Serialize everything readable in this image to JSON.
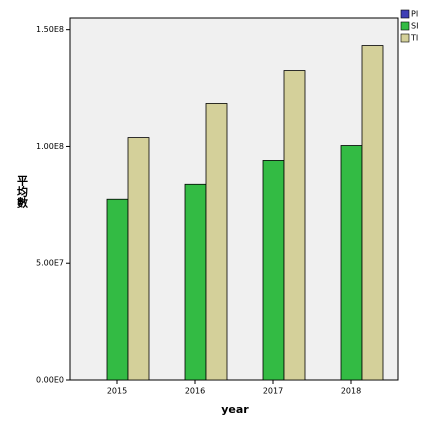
{
  "chart_data": {
    "type": "bar",
    "categories": [
      "2015",
      "2016",
      "2017",
      "2018"
    ],
    "x_label": "year",
    "y_label": "平均數",
    "series": [
      {
        "name": "PI",
        "color": "#3f3fb5",
        "values": [
          0,
          0,
          0,
          0
        ]
      },
      {
        "name": "SI",
        "color": "#33bb44",
        "values": [
          77400000,
          83800000,
          94000000,
          100400000
        ]
      },
      {
        "name": "TI",
        "color": "#d4d09a",
        "values": [
          103800000,
          118400000,
          132500000,
          143200000
        ]
      }
    ],
    "ylim": [
      0,
      155000000
    ],
    "yticks": [
      {
        "value": 0,
        "label": "0.00E0"
      },
      {
        "value": 50000000,
        "label": "5.00E7"
      },
      {
        "value": 100000000,
        "label": "1.00E8"
      },
      {
        "value": 150000000,
        "label": "1.50E8"
      }
    ],
    "legend": "top-right",
    "grid": false
  }
}
